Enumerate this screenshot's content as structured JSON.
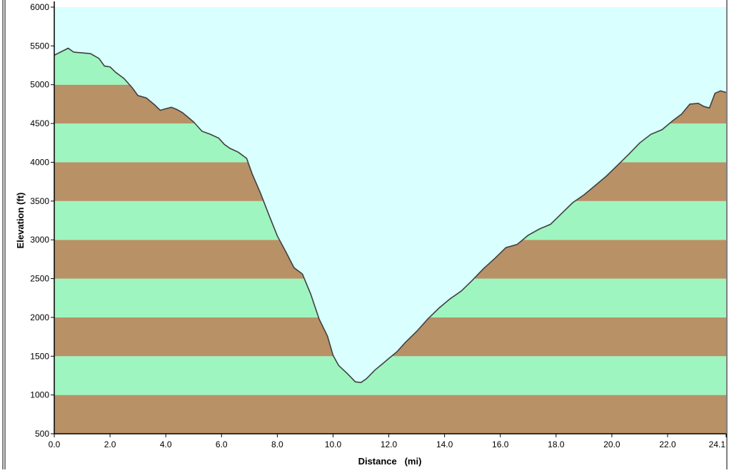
{
  "chart_data": {
    "type": "area",
    "xlabel": "Distance   (mi)",
    "ylabel": "Elevation (ft)",
    "xlim": [
      0,
      24.1
    ],
    "ylim": [
      500,
      6000
    ],
    "x_ticks": [
      0,
      2,
      4,
      6,
      8,
      10,
      12,
      14,
      16,
      18,
      20,
      22,
      24.1
    ],
    "x_tick_labels": [
      "0.0",
      "2.0",
      "4.0",
      "6.0",
      "8.0",
      "10.0",
      "12.0",
      "14.0",
      "16.0",
      "18.0",
      "20.0",
      "22.0",
      "24.1"
    ],
    "y_ticks": [
      500,
      1000,
      1500,
      2000,
      2500,
      3000,
      3500,
      4000,
      4500,
      5000,
      5500,
      6000
    ],
    "y_tick_labels": [
      "500",
      "1000",
      "1500",
      "2000",
      "2500",
      "3000",
      "3500",
      "4000",
      "4500",
      "5000",
      "5500",
      "6000"
    ],
    "band_interval": 500,
    "grid": false,
    "colors": {
      "sky": "#d9ffff",
      "band_brown": "#b99167",
      "band_green": "#9ef5c0",
      "profile_line": "#404040",
      "axis": "#000000"
    },
    "series": [
      {
        "x": [
          0,
          0.5,
          0.7,
          1.0,
          1.3,
          1.6,
          1.8,
          2.0,
          2.2,
          2.5,
          2.8,
          3.0,
          3.3,
          3.6,
          3.8,
          4.0,
          4.2,
          4.4,
          4.6,
          4.8,
          5.0,
          5.3,
          5.6,
          5.9,
          6.1,
          6.3,
          6.6,
          6.9,
          7.1,
          7.4,
          7.7,
          8.0,
          8.3,
          8.6,
          8.9,
          9.2,
          9.5,
          9.8,
          10.0,
          10.2,
          10.5,
          10.8,
          11.0,
          11.2,
          11.5,
          11.8,
          12.0,
          12.3,
          12.6,
          13.0,
          13.4,
          13.8,
          14.2,
          14.6,
          15.0,
          15.4,
          15.8,
          16.2,
          16.6,
          17.0,
          17.4,
          17.8,
          18.2,
          18.6,
          19.0,
          19.4,
          19.8,
          20.2,
          20.6,
          21.0,
          21.4,
          21.8,
          22.2,
          22.5,
          22.8,
          23.1,
          23.3,
          23.5,
          23.7,
          23.9,
          24.1
        ],
        "y": [
          5380,
          5470,
          5420,
          5410,
          5400,
          5340,
          5240,
          5230,
          5160,
          5080,
          4960,
          4860,
          4830,
          4740,
          4670,
          4690,
          4710,
          4680,
          4640,
          4580,
          4520,
          4400,
          4360,
          4310,
          4230,
          4180,
          4130,
          4050,
          3850,
          3600,
          3320,
          3050,
          2850,
          2640,
          2560,
          2300,
          1980,
          1760,
          1510,
          1380,
          1280,
          1170,
          1160,
          1210,
          1320,
          1410,
          1470,
          1560,
          1680,
          1820,
          1980,
          2120,
          2240,
          2340,
          2480,
          2630,
          2760,
          2900,
          2940,
          3060,
          3140,
          3200,
          3340,
          3480,
          3580,
          3700,
          3820,
          3960,
          4100,
          4250,
          4360,
          4420,
          4540,
          4620,
          4750,
          4760,
          4720,
          4700,
          4890,
          4920,
          4900
        ]
      }
    ]
  }
}
